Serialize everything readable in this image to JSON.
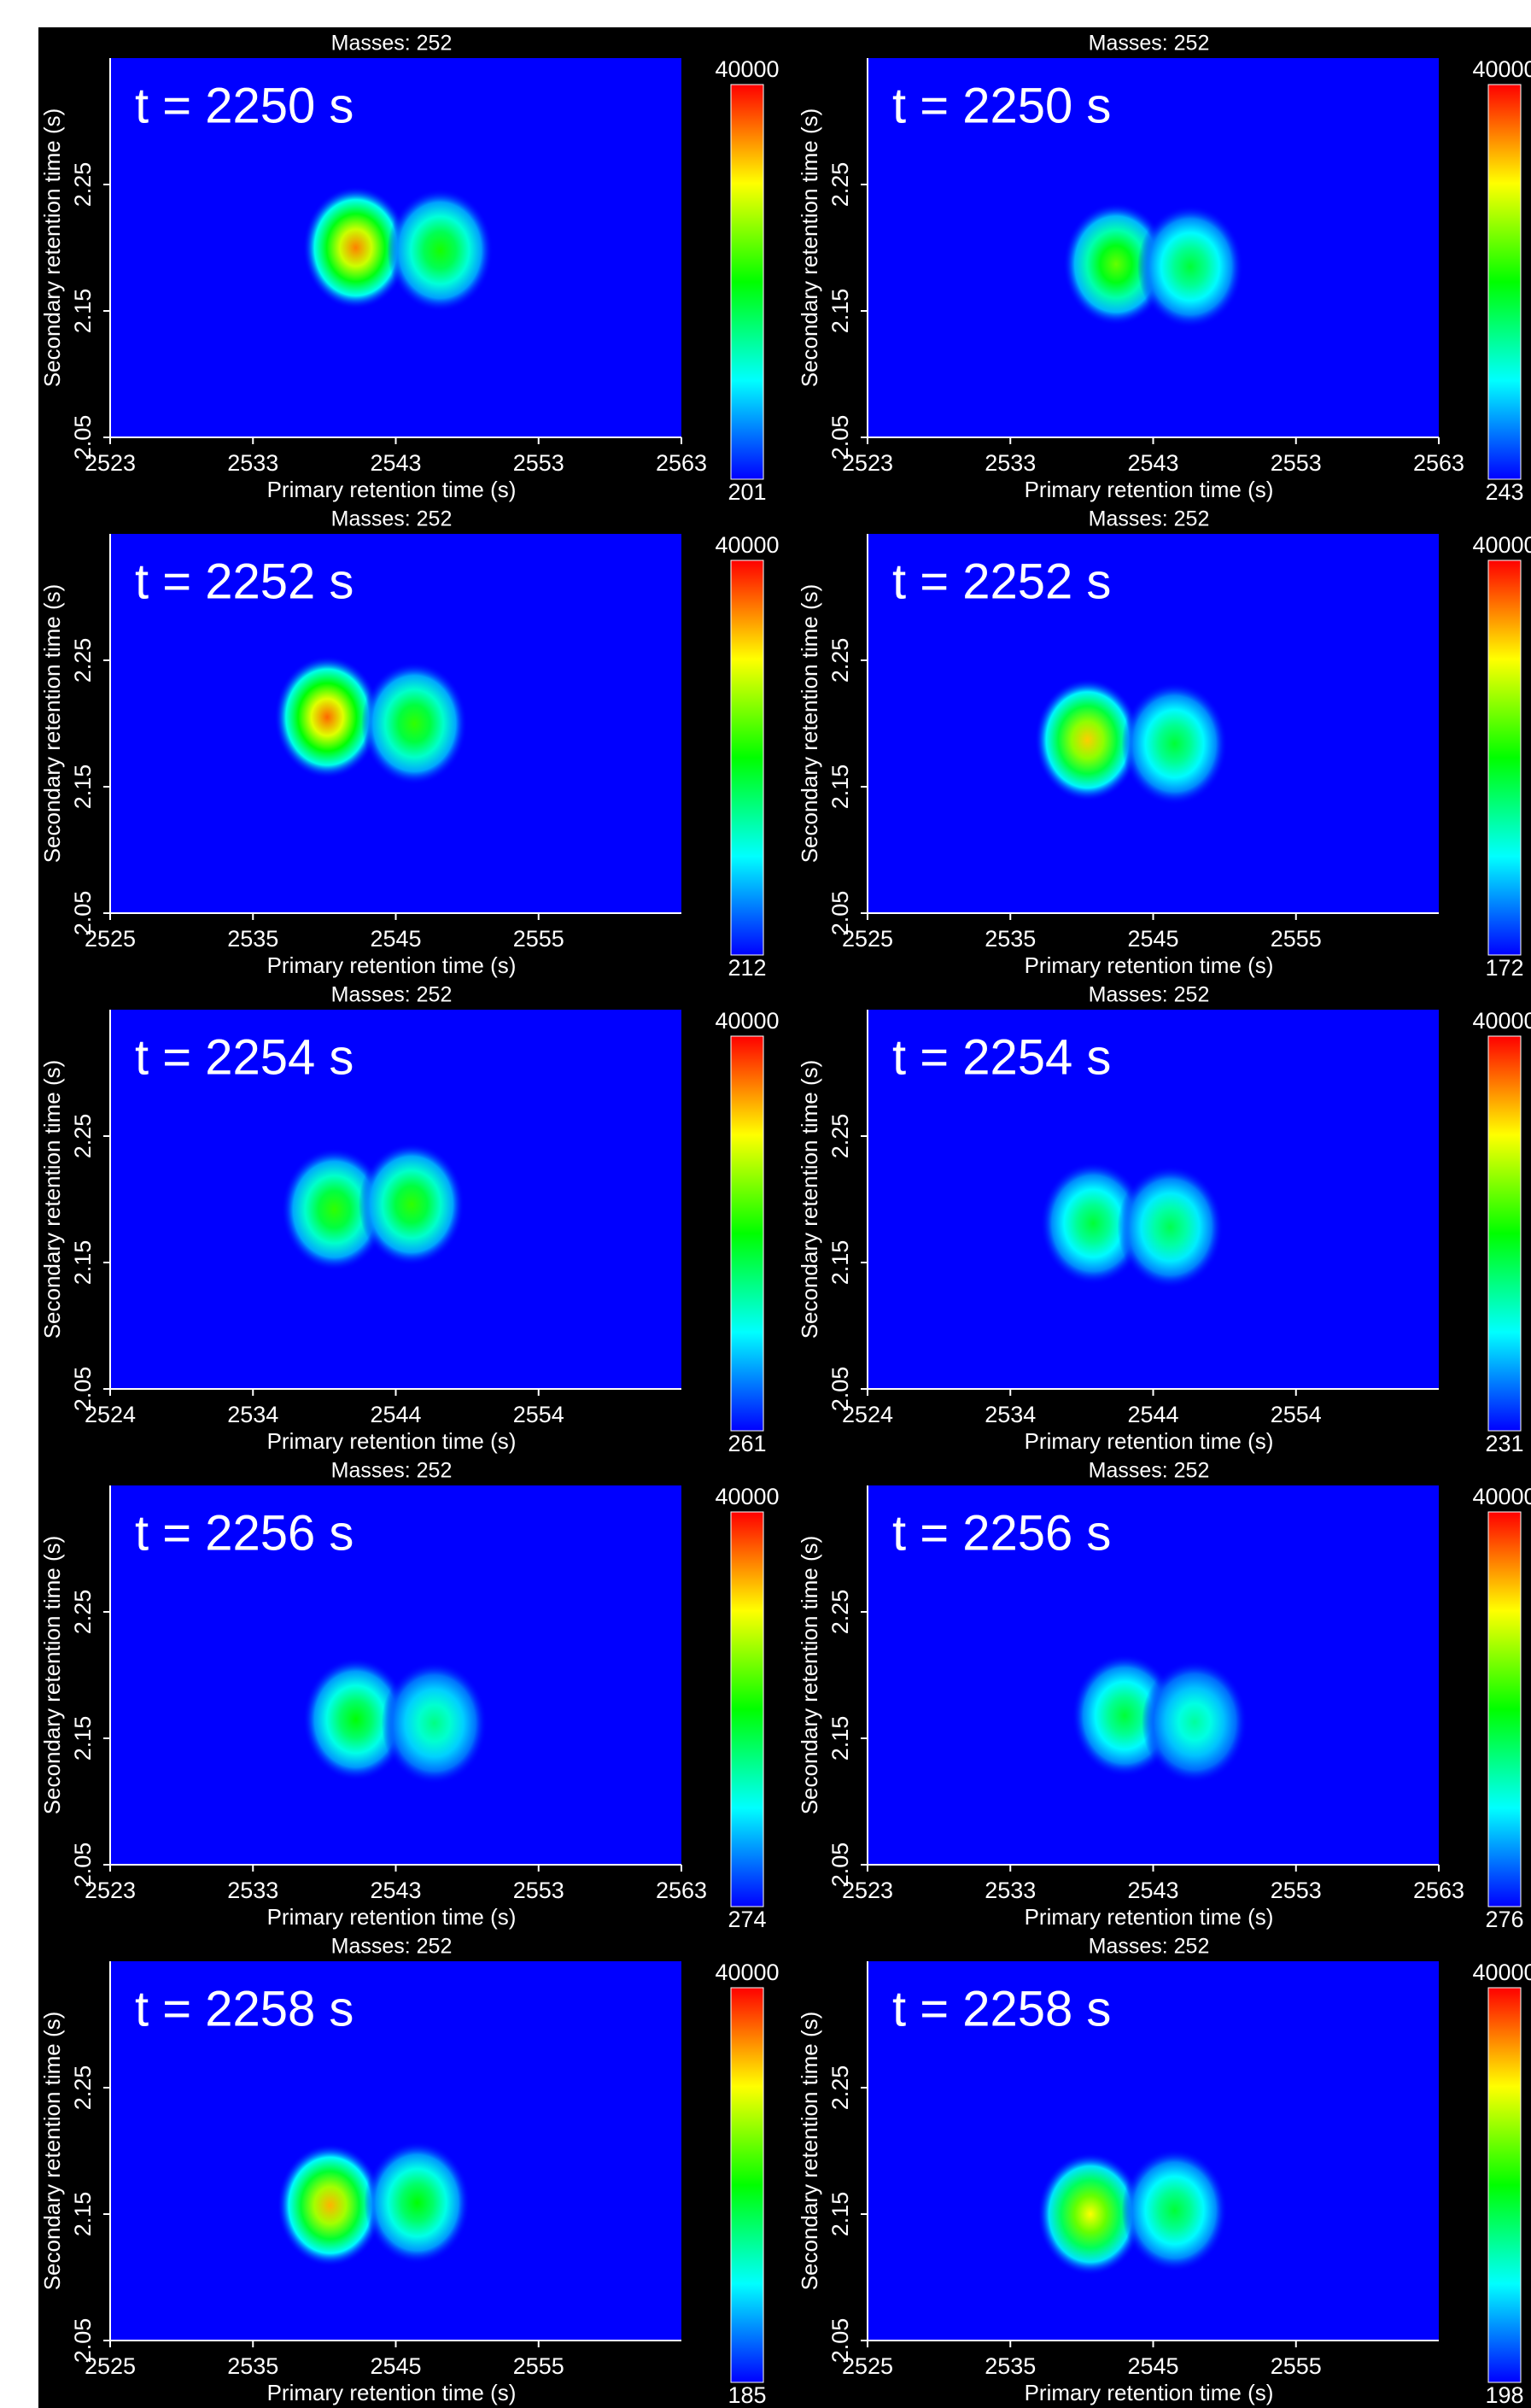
{
  "chart_data": [
    {
      "type": "heatmap",
      "title": "Masses: 252",
      "annotation": "t = 2250 s",
      "x_label": "Primary retention time (s)",
      "y_label": "Secondary retention time (s)",
      "xlim": [
        2523,
        2563
      ],
      "xticks": [
        2523,
        2533,
        2543,
        2553,
        2563
      ],
      "ylim": [
        2.05,
        2.35
      ],
      "yticks": [
        2.05,
        2.15,
        2.25
      ],
      "clim": [
        201,
        40000
      ],
      "peaks": [
        {
          "x": 2540.2,
          "y": 2.2,
          "value": 35000
        },
        {
          "x": 2546.1,
          "y": 2.198,
          "value": 21000
        }
      ]
    },
    {
      "type": "heatmap",
      "title": "Masses: 252",
      "annotation": "t = 2250 s",
      "x_label": "Primary retention time (s)",
      "y_label": "Secondary retention time (s)",
      "xlim": [
        2523,
        2563
      ],
      "xticks": [
        2523,
        2533,
        2543,
        2553,
        2563
      ],
      "ylim": [
        2.05,
        2.35
      ],
      "yticks": [
        2.05,
        2.15,
        2.25
      ],
      "clim": [
        243,
        40000
      ],
      "peaks": [
        {
          "x": 2540.4,
          "y": 2.187,
          "value": 24000
        },
        {
          "x": 2545.6,
          "y": 2.185,
          "value": 18000
        }
      ]
    },
    {
      "type": "heatmap",
      "title": "Masses: 252",
      "annotation": "t = 2252 s",
      "x_label": "Primary retention time (s)",
      "y_label": "Secondary retention time (s)",
      "xlim": [
        2525,
        2565
      ],
      "xticks": [
        2525,
        2535,
        2545,
        2555
      ],
      "ylim": [
        2.05,
        2.35
      ],
      "yticks": [
        2.05,
        2.15,
        2.25
      ],
      "clim": [
        212,
        40000
      ],
      "peaks": [
        {
          "x": 2540.2,
          "y": 2.205,
          "value": 36000
        },
        {
          "x": 2546.3,
          "y": 2.2,
          "value": 22000
        }
      ]
    },
    {
      "type": "heatmap",
      "title": "Masses: 252",
      "annotation": "t = 2252 s",
      "x_label": "Primary retention time (s)",
      "y_label": "Secondary retention time (s)",
      "xlim": [
        2525,
        2565
      ],
      "xticks": [
        2525,
        2535,
        2545,
        2555
      ],
      "ylim": [
        2.05,
        2.35
      ],
      "yticks": [
        2.05,
        2.15,
        2.25
      ],
      "clim": [
        172,
        40000
      ],
      "peaks": [
        {
          "x": 2540.4,
          "y": 2.187,
          "value": 32000
        },
        {
          "x": 2546.5,
          "y": 2.184,
          "value": 18000
        }
      ]
    },
    {
      "type": "heatmap",
      "title": "Masses: 252",
      "annotation": "t = 2254 s",
      "x_label": "Primary retention time (s)",
      "y_label": "Secondary retention time (s)",
      "xlim": [
        2524,
        2564
      ],
      "xticks": [
        2524,
        2534,
        2544,
        2554
      ],
      "ylim": [
        2.05,
        2.35
      ],
      "yticks": [
        2.05,
        2.15,
        2.25
      ],
      "clim": [
        261,
        40000
      ],
      "peaks": [
        {
          "x": 2539.7,
          "y": 2.192,
          "value": 22000
        },
        {
          "x": 2545.1,
          "y": 2.196,
          "value": 22000
        }
      ]
    },
    {
      "type": "heatmap",
      "title": "Masses: 252",
      "annotation": "t = 2254 s",
      "x_label": "Primary retention time (s)",
      "y_label": "Secondary retention time (s)",
      "xlim": [
        2524,
        2564
      ],
      "xticks": [
        2524,
        2534,
        2544,
        2554
      ],
      "ylim": [
        2.05,
        2.35
      ],
      "yticks": [
        2.05,
        2.15,
        2.25
      ],
      "clim": [
        231,
        40000
      ],
      "peaks": [
        {
          "x": 2539.8,
          "y": 2.181,
          "value": 18000
        },
        {
          "x": 2545.2,
          "y": 2.178,
          "value": 17000
        }
      ]
    },
    {
      "type": "heatmap",
      "title": "Masses: 252",
      "annotation": "t = 2256 s",
      "x_label": "Primary retention time (s)",
      "y_label": "Secondary retention time (s)",
      "xlim": [
        2523,
        2563
      ],
      "xticks": [
        2523,
        2533,
        2543,
        2553,
        2563
      ],
      "ylim": [
        2.05,
        2.35
      ],
      "yticks": [
        2.05,
        2.15,
        2.25
      ],
      "clim": [
        274,
        40000
      ],
      "peaks": [
        {
          "x": 2540.2,
          "y": 2.165,
          "value": 20000
        },
        {
          "x": 2545.7,
          "y": 2.162,
          "value": 15000
        }
      ]
    },
    {
      "type": "heatmap",
      "title": "Masses: 252",
      "annotation": "t = 2256 s",
      "x_label": "Primary retention time (s)",
      "y_label": "Secondary retention time (s)",
      "xlim": [
        2523,
        2563
      ],
      "xticks": [
        2523,
        2533,
        2543,
        2553,
        2563
      ],
      "ylim": [
        2.05,
        2.35
      ],
      "yticks": [
        2.05,
        2.15,
        2.25
      ],
      "clim": [
        276,
        40000
      ],
      "peaks": [
        {
          "x": 2541.0,
          "y": 2.168,
          "value": 18000
        },
        {
          "x": 2545.9,
          "y": 2.163,
          "value": 14000
        }
      ]
    },
    {
      "type": "heatmap",
      "title": "Masses: 252",
      "annotation": "t = 2258 s",
      "x_label": "Primary retention time (s)",
      "y_label": "Secondary retention time (s)",
      "xlim": [
        2525,
        2565
      ],
      "xticks": [
        2525,
        2535,
        2545,
        2555
      ],
      "ylim": [
        2.05,
        2.35
      ],
      "yticks": [
        2.05,
        2.15,
        2.25
      ],
      "clim": [
        185,
        40000
      ],
      "peaks": [
        {
          "x": 2540.4,
          "y": 2.157,
          "value": 33000
        },
        {
          "x": 2546.5,
          "y": 2.159,
          "value": 20000
        }
      ]
    },
    {
      "type": "heatmap",
      "title": "Masses: 252",
      "annotation": "t = 2258 s",
      "x_label": "Primary retention time (s)",
      "y_label": "Secondary retention time (s)",
      "xlim": [
        2525,
        2565
      ],
      "xticks": [
        2525,
        2535,
        2545,
        2555
      ],
      "ylim": [
        2.05,
        2.35
      ],
      "yticks": [
        2.05,
        2.15,
        2.25
      ],
      "clim": [
        198,
        40000
      ],
      "peaks": [
        {
          "x": 2540.6,
          "y": 2.15,
          "value": 30000
        },
        {
          "x": 2546.5,
          "y": 2.153,
          "value": 18000
        }
      ]
    }
  ]
}
